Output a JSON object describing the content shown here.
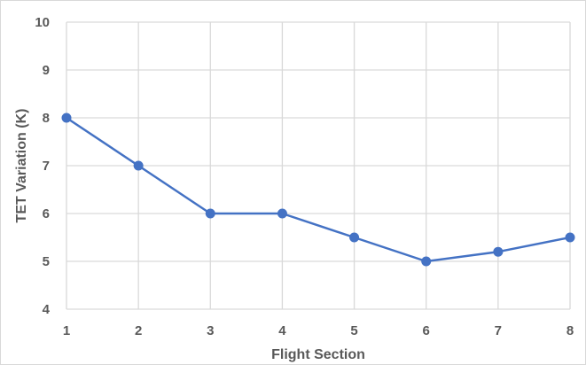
{
  "chart_data": {
    "type": "line",
    "title": "",
    "xlabel": "Flight Section",
    "ylabel": "TET Variation (K)",
    "x": [
      1,
      2,
      3,
      4,
      5,
      6,
      7,
      8
    ],
    "x_tick_labels": [
      "1",
      "2",
      "3",
      "4",
      "5",
      "6",
      "7",
      "8"
    ],
    "y_tick_labels": [
      "4",
      "5",
      "6",
      "7",
      "8",
      "9",
      "10"
    ],
    "series": [
      {
        "values": [
          8,
          7,
          6,
          6,
          5.5,
          5,
          5.2,
          5.5
        ]
      }
    ],
    "xlim": [
      1,
      8
    ],
    "ylim": [
      4,
      10
    ],
    "grid": true,
    "legend": "none",
    "line_color": "#4472c4",
    "grid_color": "#d9d9d9"
  }
}
